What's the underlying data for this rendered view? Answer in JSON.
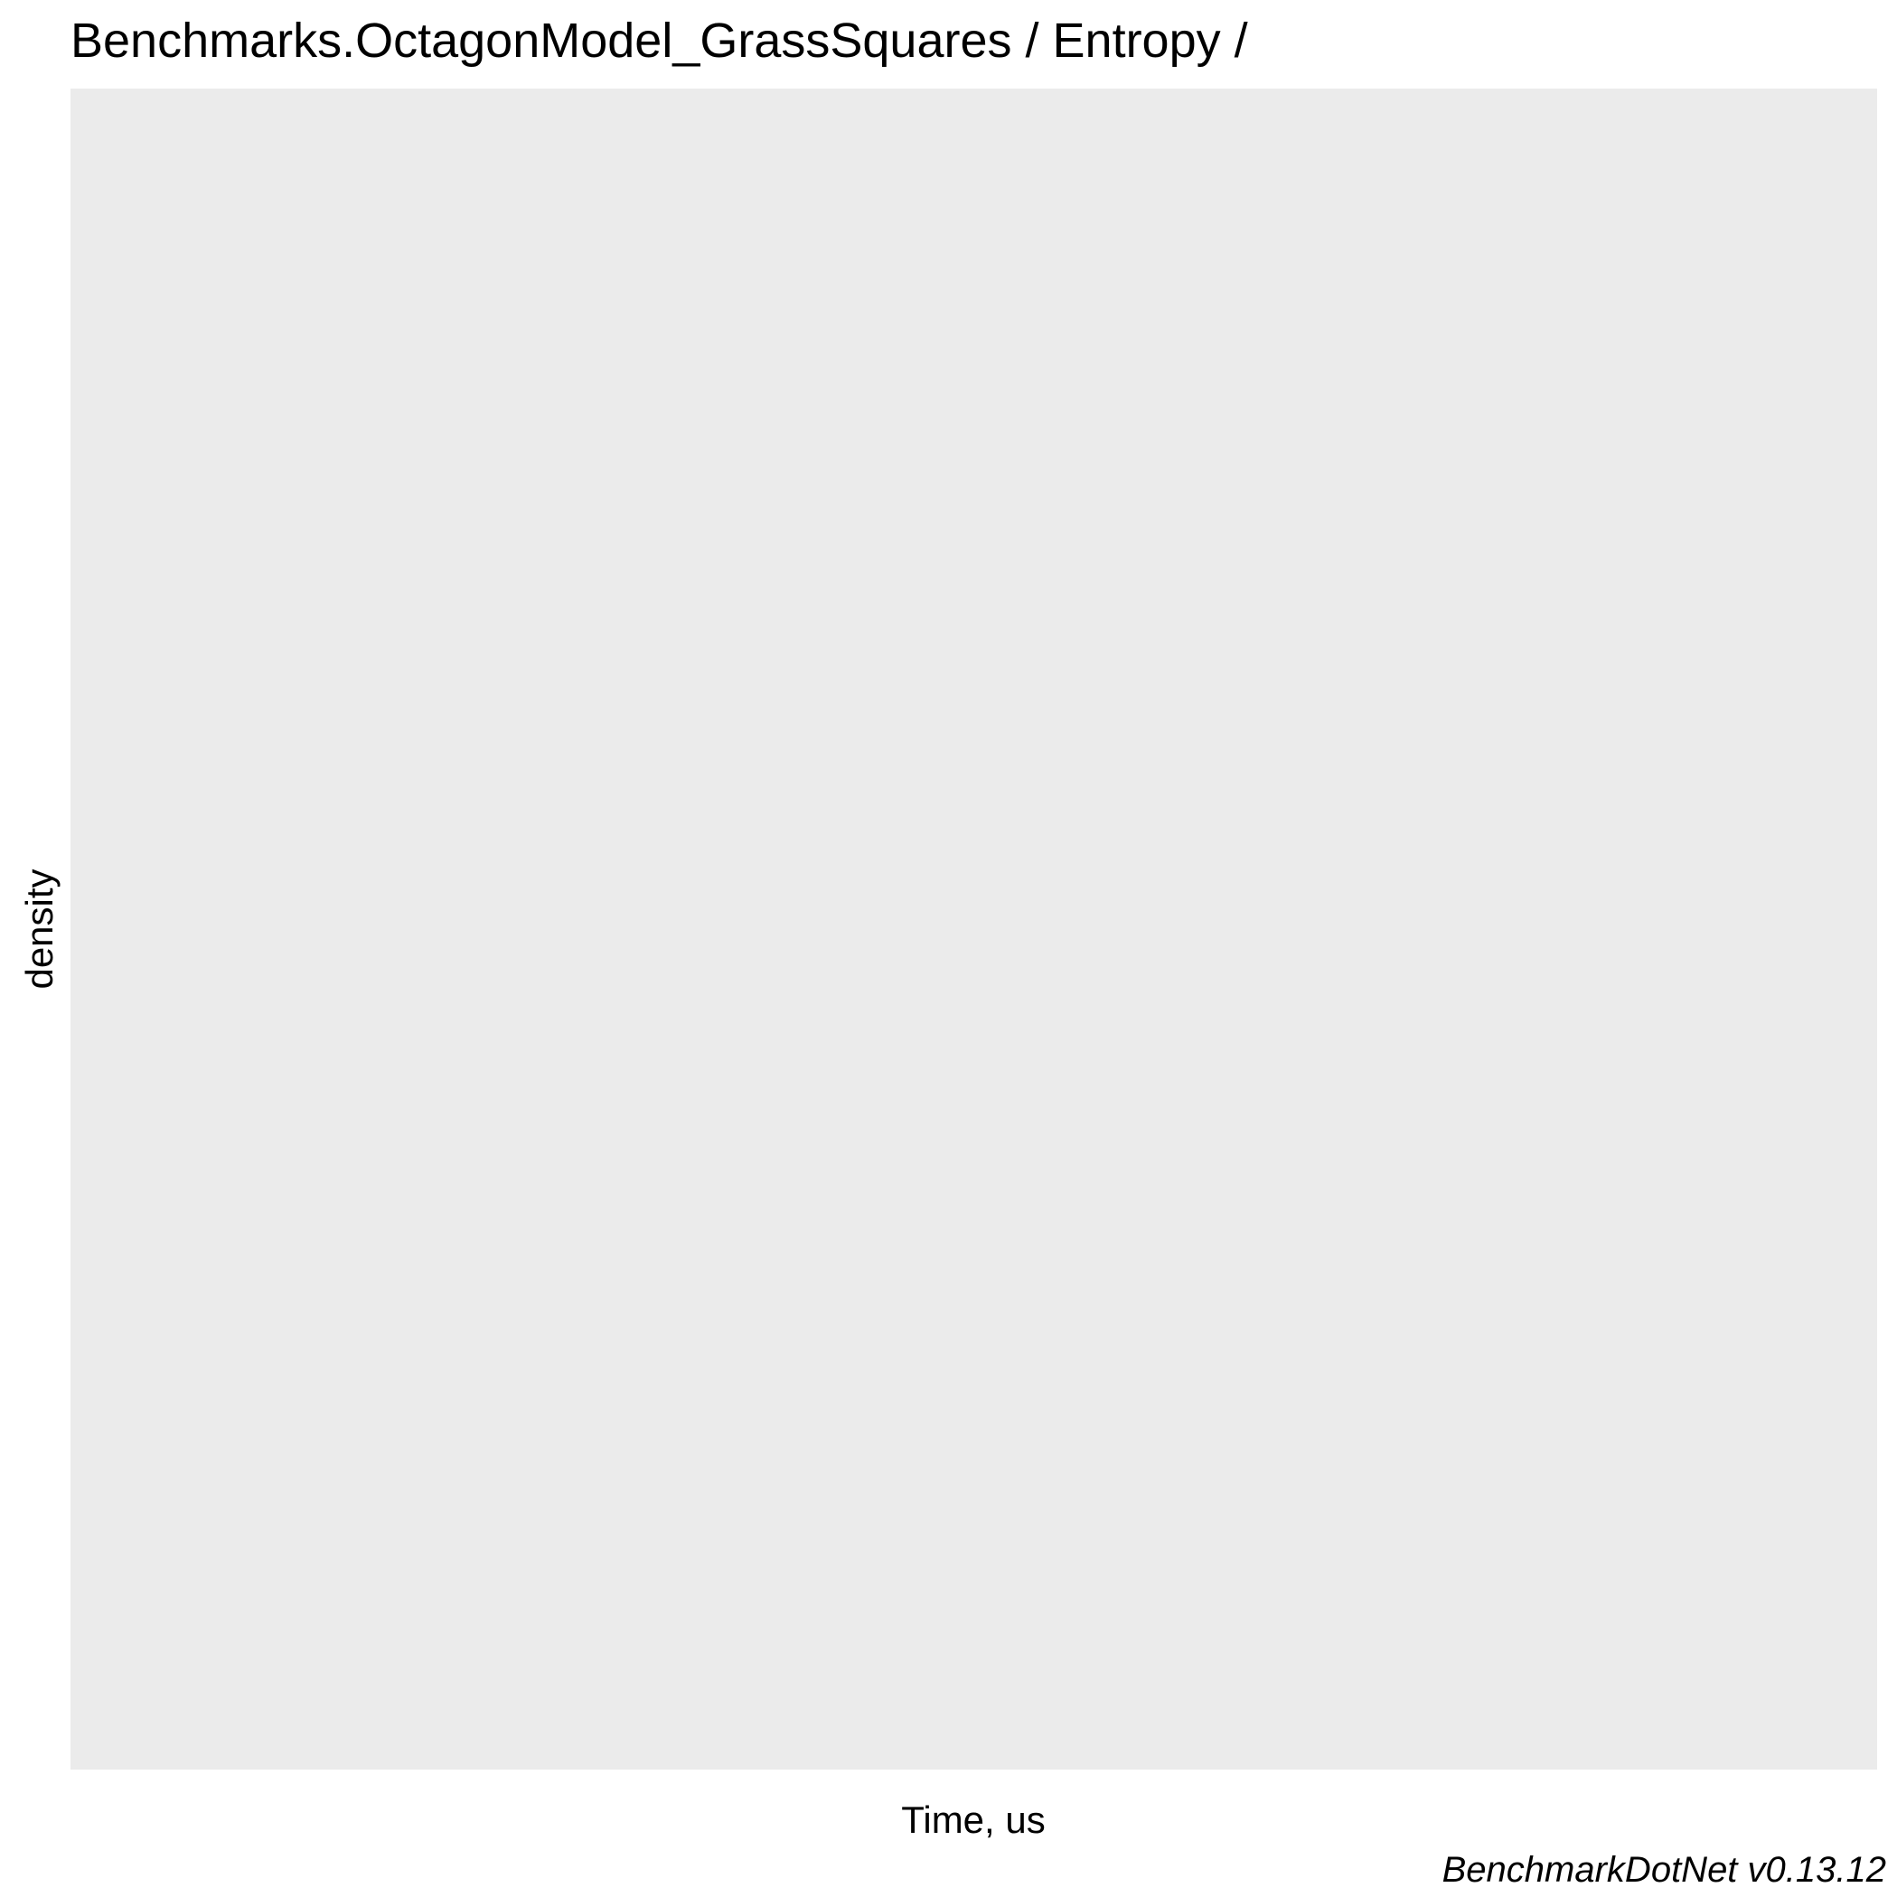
{
  "chart_data": {
    "type": "area",
    "title": "Benchmarks.OctagonModel_GrassSquares / Entropy /",
    "xlabel": "Time, us",
    "ylabel": "density",
    "caption": "BenchmarkDotNet v0.13.12",
    "series": [],
    "grid": false,
    "colors": {
      "panel_background": "#ebebeb",
      "page_background": "#ffffff",
      "text": "#000000"
    }
  }
}
